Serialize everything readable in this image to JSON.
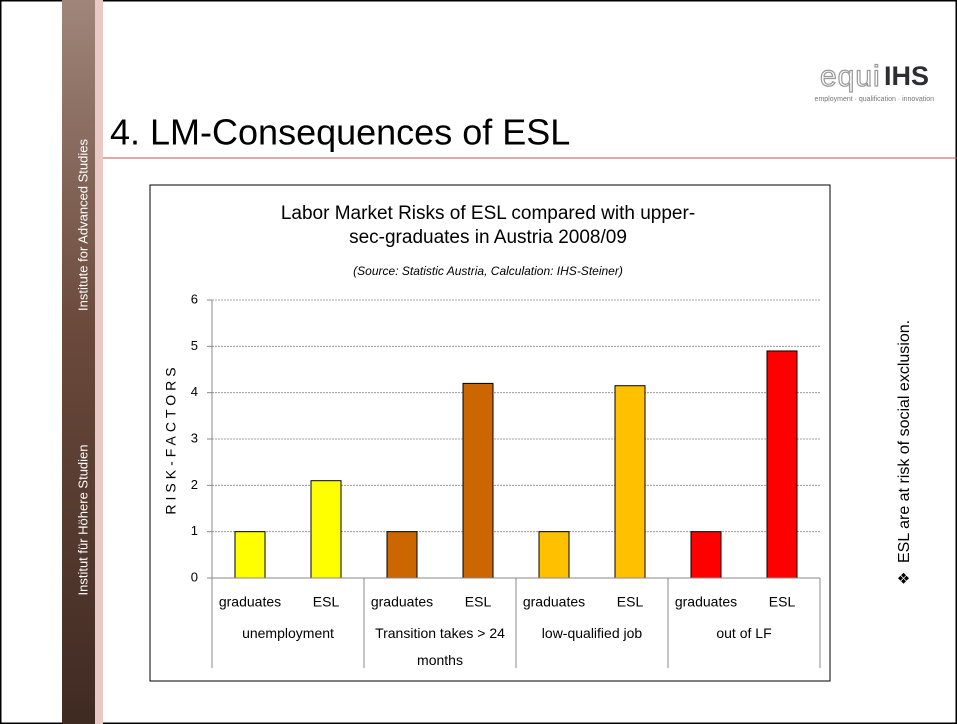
{
  "sidebar": {
    "top_text": "Institute for Advanced Studies",
    "bottom_text": "Institut für Höhere Studien"
  },
  "logo": {
    "mark": "equi",
    "name": "IHS",
    "tagline": "employment · qualification · innovation"
  },
  "slide_title": "4. LM-Consequences of ESL",
  "bullet": {
    "marker": "❖",
    "text": "ESL are at risk of social exclusion."
  },
  "chart_data": {
    "type": "bar",
    "title": "Labor Market Risks of ESL compared with upper-sec-graduates in Austria 2008/09",
    "subtitle": "(Source: Statistic Austria, Calculation: IHS-Steiner)",
    "y_label": "RISK-FACTORS",
    "categories": [
      "graduates",
      "ESL",
      "graduates",
      "ESL",
      "graduates",
      "ESL",
      "graduates",
      "ESL"
    ],
    "groups": [
      "unemployment",
      "Transition takes > 24 months",
      "low-qualified job",
      "out of LF"
    ],
    "values": [
      1,
      2.1,
      1,
      4.2,
      1,
      4.15,
      1,
      4.9
    ],
    "colors": [
      "#ffff00",
      "#ffff00",
      "#cc6600",
      "#cc6600",
      "#ffc000",
      "#ffc000",
      "#ff0000",
      "#ff0000"
    ],
    "ylim": [
      0,
      6
    ],
    "yticks": [
      0,
      1,
      2,
      3,
      4,
      5,
      6
    ],
    "grid": true
  }
}
